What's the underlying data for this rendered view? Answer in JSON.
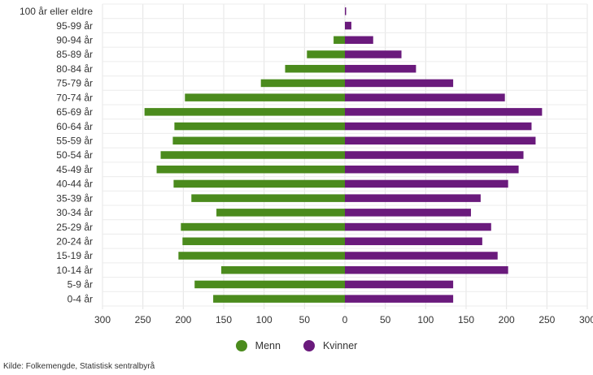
{
  "chart_data": {
    "type": "bar",
    "orientation": "horizontal-population-pyramid",
    "categories": [
      "0-4 år",
      "5-9 år",
      "10-14 år",
      "15-19 år",
      "20-24 år",
      "25-29 år",
      "30-34 år",
      "35-39 år",
      "40-44 år",
      "45-49 år",
      "50-54 år",
      "55-59 år",
      "60-64 år",
      "65-69 år",
      "70-74 år",
      "75-79 år",
      "80-84 år",
      "85-89 år",
      "90-94 år",
      "95-99 år",
      "100 år eller eldre"
    ],
    "series": [
      {
        "name": "Menn",
        "color": "#4b8b1d",
        "values": [
          163,
          186,
          153,
          206,
          201,
          203,
          159,
          190,
          212,
          233,
          228,
          213,
          211,
          248,
          198,
          104,
          74,
          47,
          14,
          0,
          0
        ]
      },
      {
        "name": "Kvinner",
        "color": "#6a1a7c",
        "values": [
          134,
          134,
          202,
          189,
          170,
          181,
          156,
          168,
          202,
          215,
          221,
          236,
          231,
          244,
          198,
          134,
          88,
          70,
          35,
          8,
          1
        ]
      }
    ],
    "xticks": [
      "300",
      "250",
      "200",
      "150",
      "100",
      "50",
      "0",
      "50",
      "100",
      "150",
      "200",
      "250",
      "300"
    ],
    "xlim": [
      -300,
      300
    ],
    "grid": true,
    "legend_position": "bottom-center"
  },
  "source": "Kilde: Folkemengde, Statistisk sentralbyrå"
}
